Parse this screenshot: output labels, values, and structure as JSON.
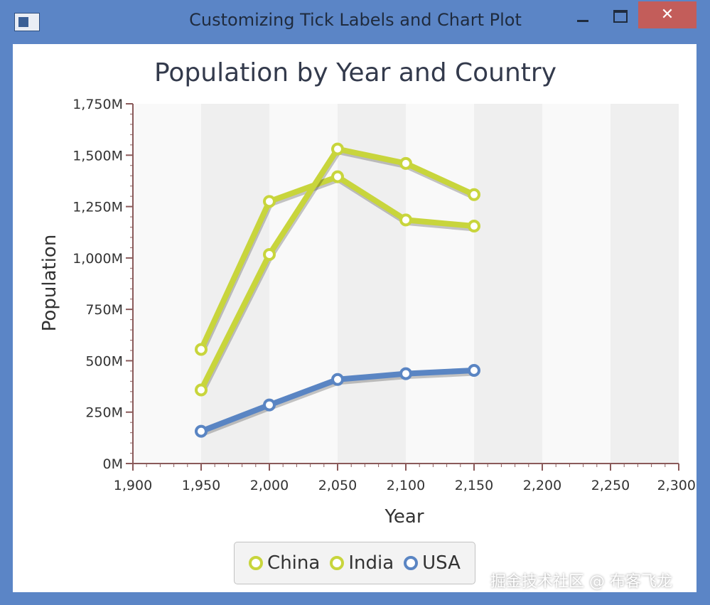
{
  "window": {
    "title": "Customizing Tick Labels and Chart Plot",
    "close_glyph": "✕"
  },
  "icons": {
    "app": "app-window-icon",
    "minimize": "minimize-icon",
    "maximize": "maximize-icon",
    "close": "close-icon"
  },
  "watermark": "掘金技术社区 @ 布客飞龙",
  "chart_data": {
    "type": "line",
    "title": "Population by Year and Country",
    "xlabel": "Year",
    "ylabel": "Population",
    "xlim": [
      1900,
      2300
    ],
    "ylim": [
      0,
      1750
    ],
    "x_ticks": [
      1900,
      1950,
      2000,
      2050,
      2100,
      2150,
      2200,
      2250,
      2300
    ],
    "x_tick_labels": [
      "1,900",
      "1,950",
      "2,000",
      "2,050",
      "2,100",
      "2,150",
      "2,200",
      "2,250",
      "2,300"
    ],
    "y_ticks": [
      0,
      250,
      500,
      750,
      1000,
      1250,
      1500,
      1750
    ],
    "y_tick_labels": [
      "0M",
      "250M",
      "500M",
      "750M",
      "1,000M",
      "1,250M",
      "1,500M",
      "1,750M"
    ],
    "x_minor_step": 10,
    "y_minor_step": 50,
    "grid": false,
    "alternative_column_fill": true,
    "legend_position": "bottom",
    "colors": {
      "plot_background": "#f9f9f9",
      "alt_column": "#efefef",
      "axis": "#8a5a5a",
      "title": "#333a4c",
      "tick_label": "#333333"
    },
    "series": [
      {
        "name": "China",
        "color": "#c8d53c",
        "x": [
          1950,
          2000,
          2050,
          2100,
          2150
        ],
        "values": [
          555,
          1275,
          1395,
          1185,
          1155
        ]
      },
      {
        "name": "India",
        "color": "#c8d53c",
        "x": [
          1950,
          2000,
          2050,
          2100,
          2150
        ],
        "values": [
          358,
          1017,
          1530,
          1460,
          1308
        ]
      },
      {
        "name": "USA",
        "color": "#5a85c3",
        "x": [
          1950,
          2000,
          2050,
          2100,
          2150
        ],
        "values": [
          157,
          285,
          409,
          437,
          453
        ]
      }
    ]
  }
}
